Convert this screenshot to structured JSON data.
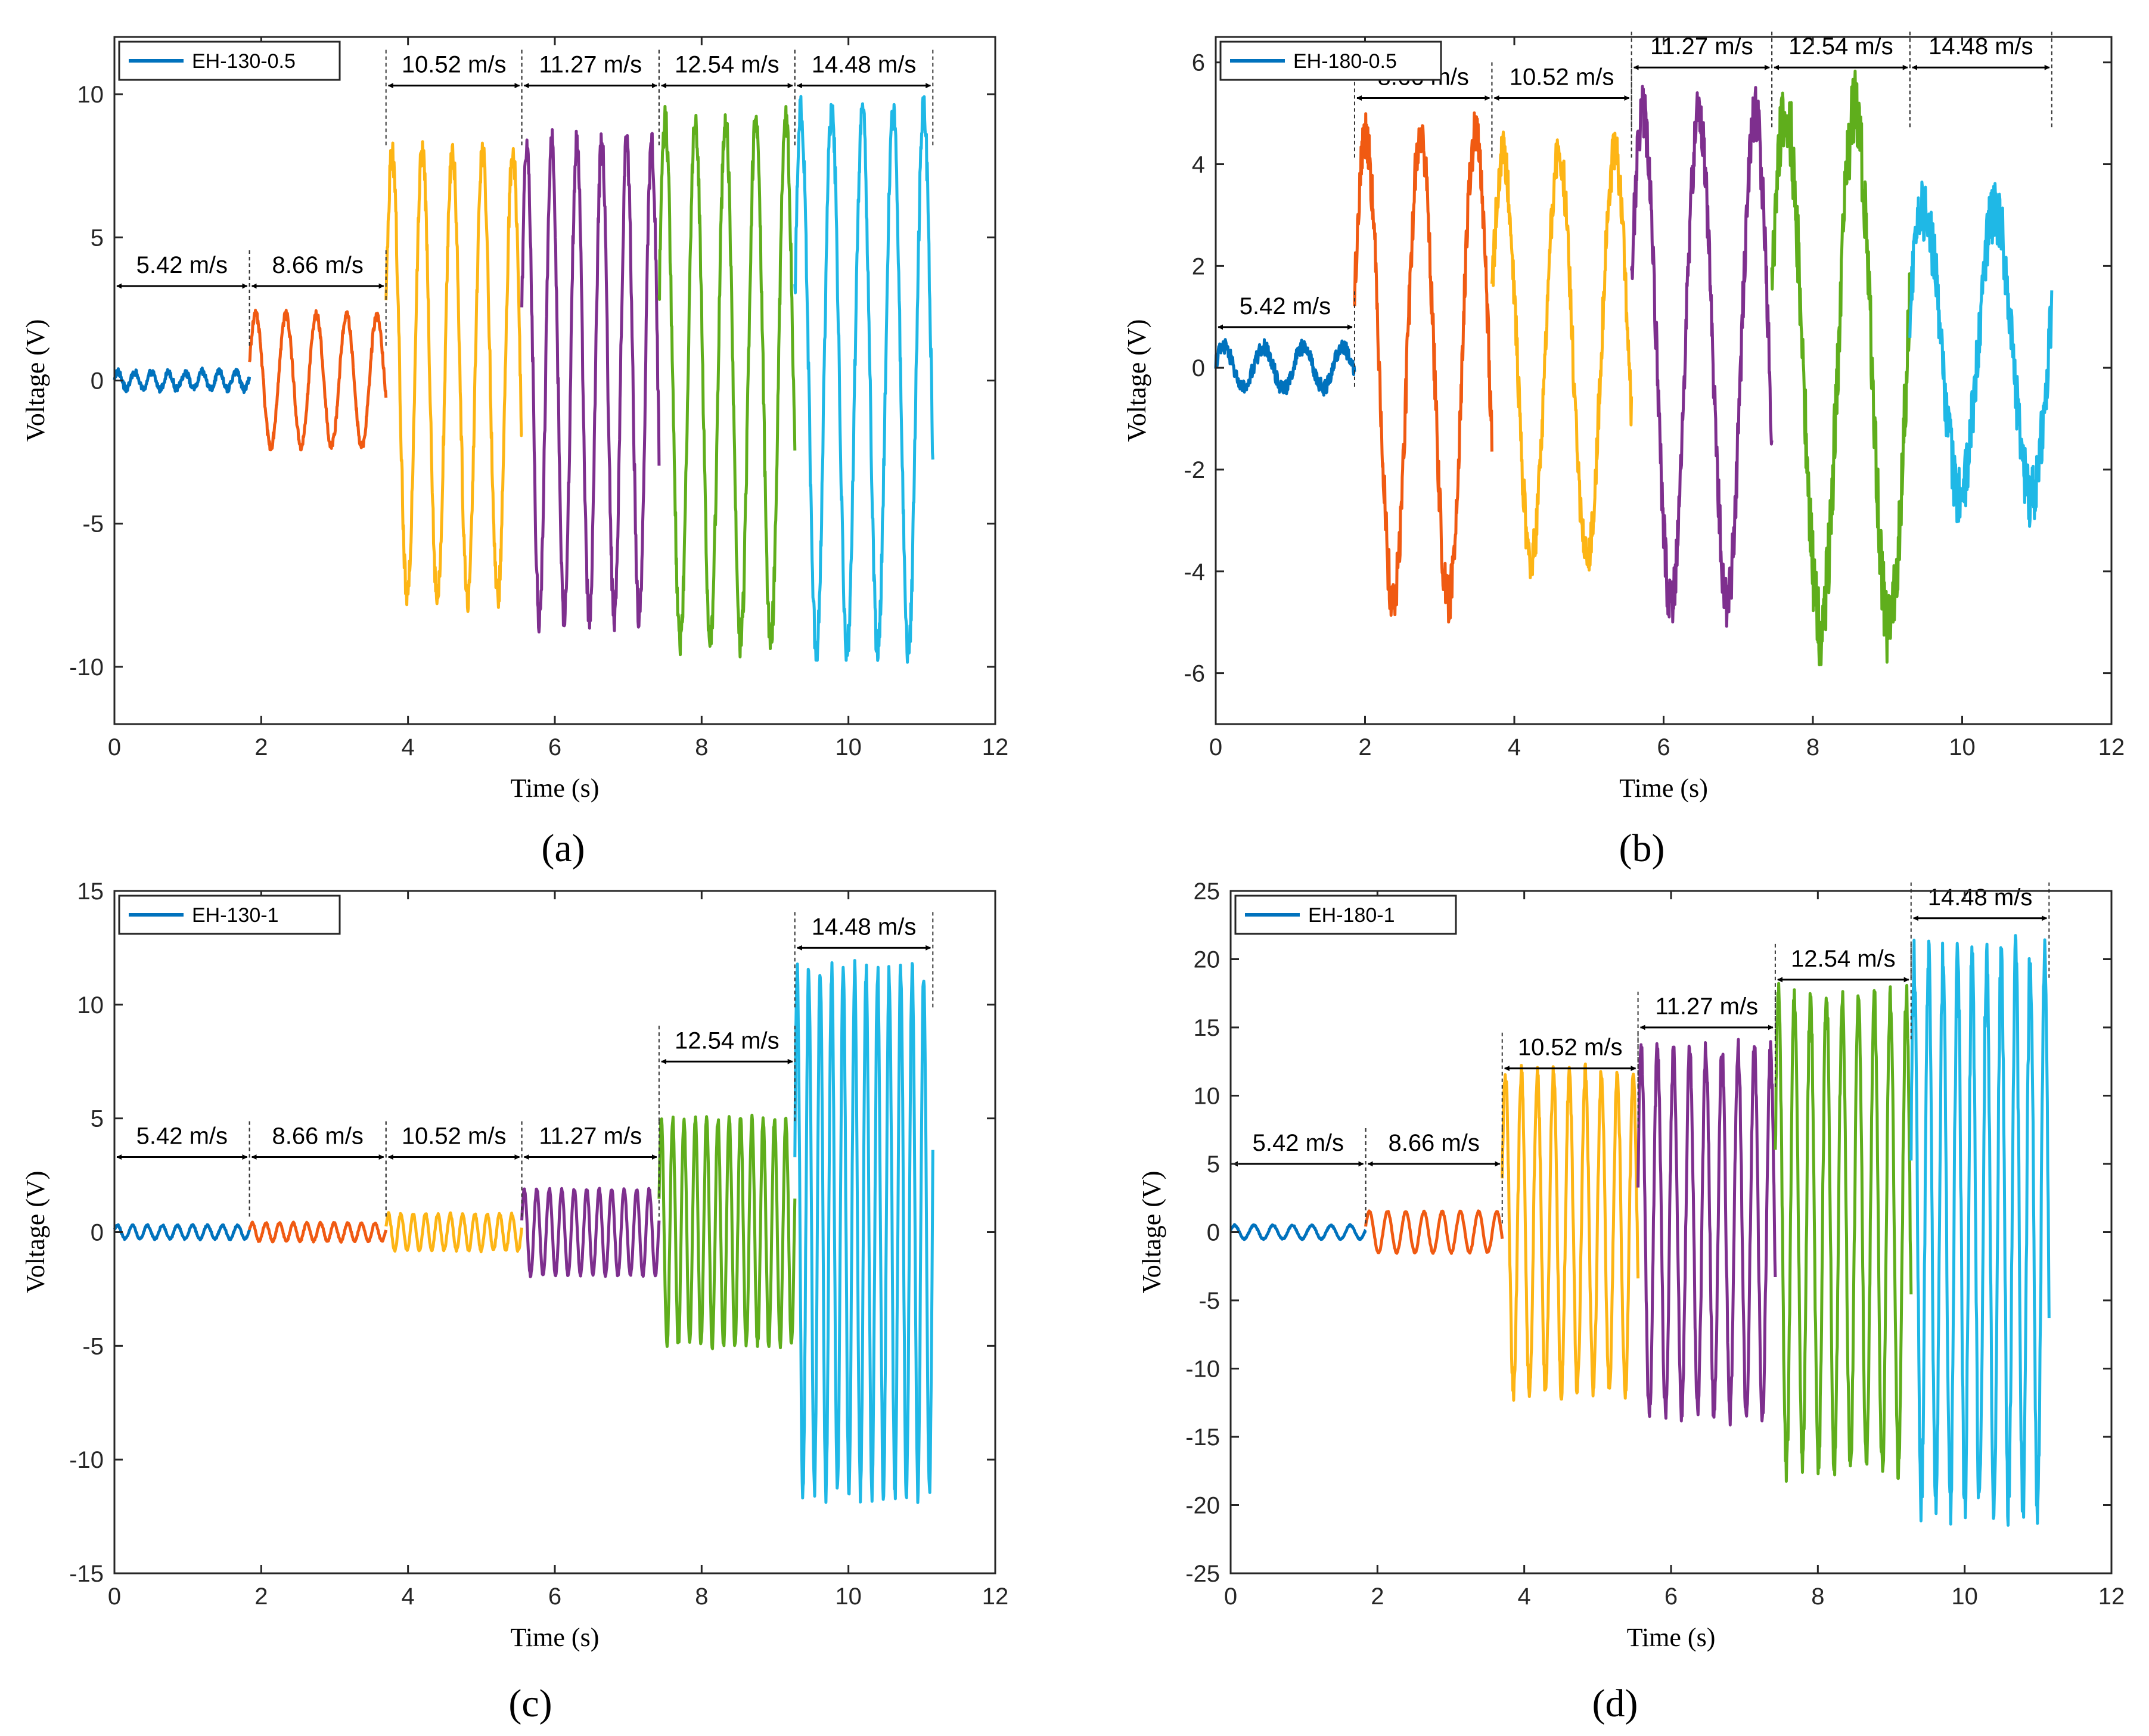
{
  "figure": {
    "panel_captions": [
      "(a)",
      "(b)",
      "(c)",
      "(d)"
    ],
    "segment_colors": [
      "#0072BD",
      "#F05A12",
      "#FDB515",
      "#7E2F8E",
      "#5FAE1C",
      "#1FB8E6"
    ]
  },
  "chart_data": [
    {
      "type": "line",
      "title": "",
      "caption": "(a)",
      "legend": "EH-130-0.5",
      "legend_position": "top-left",
      "xlabel": "Time (s)",
      "ylabel": "Voltage (V)",
      "xlim": [
        0,
        12
      ],
      "ylim": [
        -12,
        12
      ],
      "xticks": [
        0,
        2,
        4,
        6,
        8,
        10,
        12
      ],
      "yticks": [
        -10,
        -5,
        0,
        5,
        10
      ],
      "segment_boundaries": [
        0,
        1.84,
        3.7,
        5.55,
        7.42,
        9.27,
        11.15
      ],
      "segments": [
        {
          "label": "5.42 m/s",
          "amplitude": 0.3,
          "offset": 0,
          "cycles": 8,
          "noise": 0.12,
          "label_level": 3.3
        },
        {
          "label": "8.66 m/s",
          "amplitude": 2.3,
          "offset": 0,
          "cycles": 4.5,
          "noise": 0.15,
          "label_level": 3.3
        },
        {
          "label": "10.52 m/s",
          "amplitude": 7.8,
          "offset": 0.2,
          "cycles": 4.5,
          "noise": 0.15,
          "label_level": 10.3
        },
        {
          "label": "11.27 m/s",
          "amplitude": 8.3,
          "offset": 0,
          "cycles": 5.5,
          "noise": 0.15,
          "label_level": 10.3
        },
        {
          "label": "12.54 m/s",
          "amplitude": 9.1,
          "offset": 0,
          "cycles": 4.5,
          "noise": 0.15,
          "label_level": 10.3
        },
        {
          "label": "14.48 m/s",
          "amplitude": 9.4,
          "offset": 0,
          "cycles": 4.5,
          "noise": 0.15,
          "label_level": 10.3
        }
      ]
    },
    {
      "type": "line",
      "title": "",
      "caption": "(b)",
      "legend": "EH-180-0.5",
      "legend_position": "top-left",
      "xlabel": "Time (s)",
      "ylabel": "Voltage (V)",
      "xlim": [
        0,
        12
      ],
      "ylim": [
        -7,
        6.5
      ],
      "xticks": [
        0,
        2,
        4,
        6,
        8,
        10,
        12
      ],
      "yticks": [
        -6,
        -4,
        -2,
        0,
        2,
        4,
        6
      ],
      "segment_boundaries": [
        0,
        1.86,
        3.7,
        5.57,
        7.45,
        9.3,
        11.2
      ],
      "segments": [
        {
          "label": "5.42 m/s",
          "amplitude": 0.4,
          "offset": 0,
          "cycles": 3.5,
          "noise": 0.15,
          "label_level": 0.8
        },
        {
          "label": "8.66 m/s",
          "amplitude": 4.6,
          "offset": 0,
          "cycles": 2.5,
          "noise": 0.25,
          "label_level": 5.3
        },
        {
          "label": "10.52 m/s",
          "amplitude": 4.0,
          "offset": 0.2,
          "cycles": 2.5,
          "noise": 0.25,
          "label_level": 5.3
        },
        {
          "label": "11.27 m/s",
          "amplitude": 4.8,
          "offset": 0.2,
          "cycles": 2.5,
          "noise": 0.25,
          "label_level": 5.9
        },
        {
          "label": "12.54 m/s",
          "amplitude": 5.1,
          "offset": 0,
          "cycles": 2.0,
          "noise": 0.35,
          "label_level": 5.9
        },
        {
          "label": "14.48 m/s",
          "amplitude": 2.8,
          "offset": 0.3,
          "cycles": 2.0,
          "noise": 0.5,
          "label_level": 5.9
        }
      ]
    },
    {
      "type": "line",
      "title": "",
      "caption": "(c)",
      "legend": "EH-130-1",
      "legend_position": "top-left",
      "xlabel": "Time (s)",
      "ylabel": "Voltage (V)",
      "xlim": [
        0,
        12
      ],
      "ylim": [
        -15,
        15
      ],
      "xticks": [
        0,
        2,
        4,
        6,
        8,
        10,
        12
      ],
      "yticks": [
        -15,
        -10,
        -5,
        0,
        5,
        10,
        15
      ],
      "segment_boundaries": [
        0,
        1.84,
        3.7,
        5.55,
        7.42,
        9.27,
        11.15
      ],
      "segments": [
        {
          "label": "5.42 m/s",
          "amplitude": 0.3,
          "offset": 0,
          "cycles": 9,
          "noise": 0.04,
          "label_level": 3.3
        },
        {
          "label": "8.66 m/s",
          "amplitude": 0.4,
          "offset": 0,
          "cycles": 10,
          "noise": 0.04,
          "label_level": 3.3
        },
        {
          "label": "10.52 m/s",
          "amplitude": 0.8,
          "offset": 0,
          "cycles": 11,
          "noise": 0.06,
          "label_level": 3.3
        },
        {
          "label": "11.27 m/s",
          "amplitude": 1.9,
          "offset": 0,
          "cycles": 11,
          "noise": 0.08,
          "label_level": 3.3
        },
        {
          "label": "12.54 m/s",
          "amplitude": 5.0,
          "offset": 0,
          "cycles": 12,
          "noise": 0.1,
          "label_level": 7.5
        },
        {
          "label": "14.48 m/s",
          "amplitude": 11.5,
          "offset": 0,
          "cycles": 12,
          "noise": 0.1,
          "label_level": 12.5
        }
      ]
    },
    {
      "type": "line",
      "title": "",
      "caption": "(d)",
      "legend": "EH-180-1",
      "legend_position": "top-left",
      "xlabel": "Time (s)",
      "ylabel": "Voltage (V)",
      "xlim": [
        0,
        12
      ],
      "ylim": [
        -25,
        25
      ],
      "xticks": [
        0,
        2,
        4,
        6,
        8,
        10,
        12
      ],
      "yticks": [
        -25,
        -20,
        -15,
        -10,
        -5,
        0,
        5,
        10,
        15,
        20,
        25
      ],
      "segment_boundaries": [
        0,
        1.84,
        3.7,
        5.55,
        7.42,
        9.27,
        11.15
      ],
      "segments": [
        {
          "label": "5.42 m/s",
          "amplitude": 0.5,
          "offset": 0,
          "cycles": 7,
          "noise": 0.05,
          "label_level": 5.0
        },
        {
          "label": "8.66 m/s",
          "amplitude": 1.5,
          "offset": 0,
          "cycles": 7.5,
          "noise": 0.1,
          "label_level": 5.0
        },
        {
          "label": "10.52 m/s",
          "amplitude": 11.6,
          "offset": 0,
          "cycles": 8.5,
          "noise": 0.15,
          "label_level": 12.0
        },
        {
          "label": "11.27 m/s",
          "amplitude": 13.3,
          "offset": 0,
          "cycles": 8.5,
          "noise": 0.15,
          "label_level": 15.0
        },
        {
          "label": "12.54 m/s",
          "amplitude": 17.3,
          "offset": 0,
          "cycles": 8.5,
          "noise": 0.15,
          "label_level": 18.5
        },
        {
          "label": "14.48 m/s",
          "amplitude": 20.2,
          "offset": 0,
          "cycles": 9.5,
          "noise": 0.2,
          "label_level": 23.0
        }
      ]
    }
  ]
}
